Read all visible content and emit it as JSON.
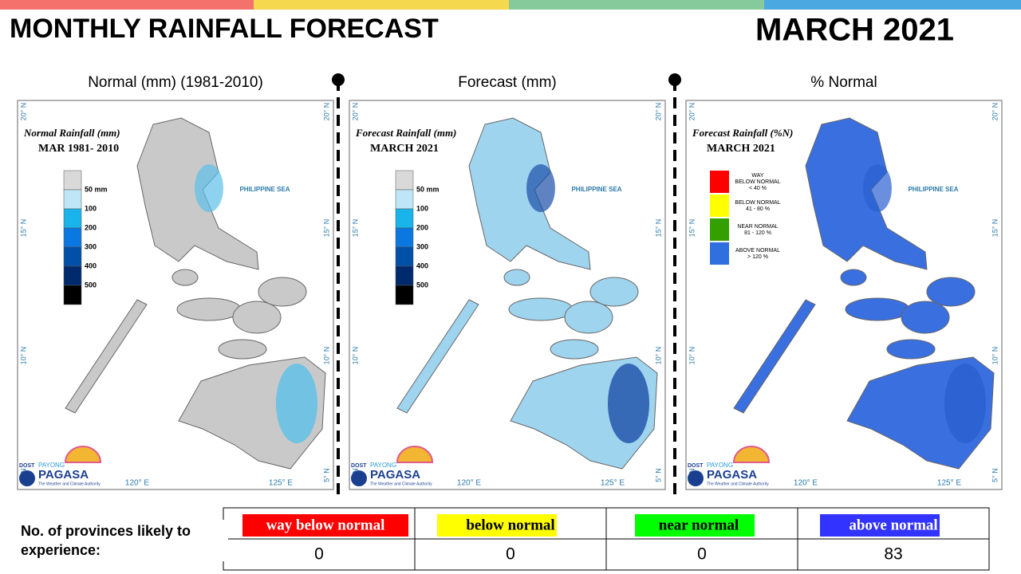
{
  "header": {
    "title": "MONTHLY RAINFALL FORECAST",
    "period": "MARCH 2021"
  },
  "panels": [
    {
      "heading": "Normal (mm) (1981-2010)",
      "map_title": "Normal Rainfall (mm)",
      "map_subtitle": "MAR 1981- 2010",
      "legend_colors": [
        "#d9d9d9",
        "#bfe6f7",
        "#19b4ea",
        "#0a78e0",
        "#0050a8",
        "#002a6e",
        "#000000"
      ],
      "legend_labels": [
        "50 mm",
        "100",
        "200",
        "300",
        "400",
        "500"
      ]
    },
    {
      "heading": "Forecast (mm)",
      "map_title": "Forecast Rainfall (mm)",
      "map_subtitle": "MARCH 2021",
      "legend_colors": [
        "#d9d9d9",
        "#bfe6f7",
        "#19b4ea",
        "#0a78e0",
        "#0050a8",
        "#002a6e",
        "#000000"
      ],
      "legend_labels": [
        "50 mm",
        "100",
        "200",
        "300",
        "400",
        "500"
      ]
    },
    {
      "heading": "% Normal",
      "map_title": "Forecast Rainfall (%N)",
      "map_subtitle": "MARCH 2021",
      "legend_items": [
        {
          "color": "#ff0000",
          "lines": [
            "WAY",
            "BELOW NORMAL",
            "< 40 %"
          ]
        },
        {
          "color": "#ffff00",
          "lines": [
            "BELOW NORMAL",
            "41 - 80 %"
          ]
        },
        {
          "color": "#33a000",
          "lines": [
            "NEAR NORMAL",
            "81 - 120 %"
          ]
        },
        {
          "color": "#2f6fe0",
          "lines": [
            "ABOVE NORMAL",
            "> 120 %"
          ]
        }
      ]
    }
  ],
  "map": {
    "sea_label": "PHILIPPINE SEA",
    "lat_labels": [
      "20° N",
      "15° N",
      "10° N",
      "5° N"
    ],
    "lon_labels": [
      "120° E",
      "125° E"
    ]
  },
  "logo": {
    "agency": "DOST",
    "brand": "PAYONG",
    "name": "PAGASA",
    "tagline": "The Weather and Climate Authority"
  },
  "table": {
    "label": "No. of provinces likely to experience:",
    "columns": [
      {
        "header": "way below normal",
        "color": "#ff0000",
        "text_color": "#ffffff",
        "value": 0
      },
      {
        "header": "below normal",
        "color": "#ffff00",
        "text_color": "#000000",
        "value": 0
      },
      {
        "header": "near normal",
        "color": "#00ff00",
        "text_color": "#000000",
        "value": 0
      },
      {
        "header": "above normal",
        "color": "#3333ff",
        "text_color": "#ffffff",
        "value": 83
      }
    ]
  }
}
